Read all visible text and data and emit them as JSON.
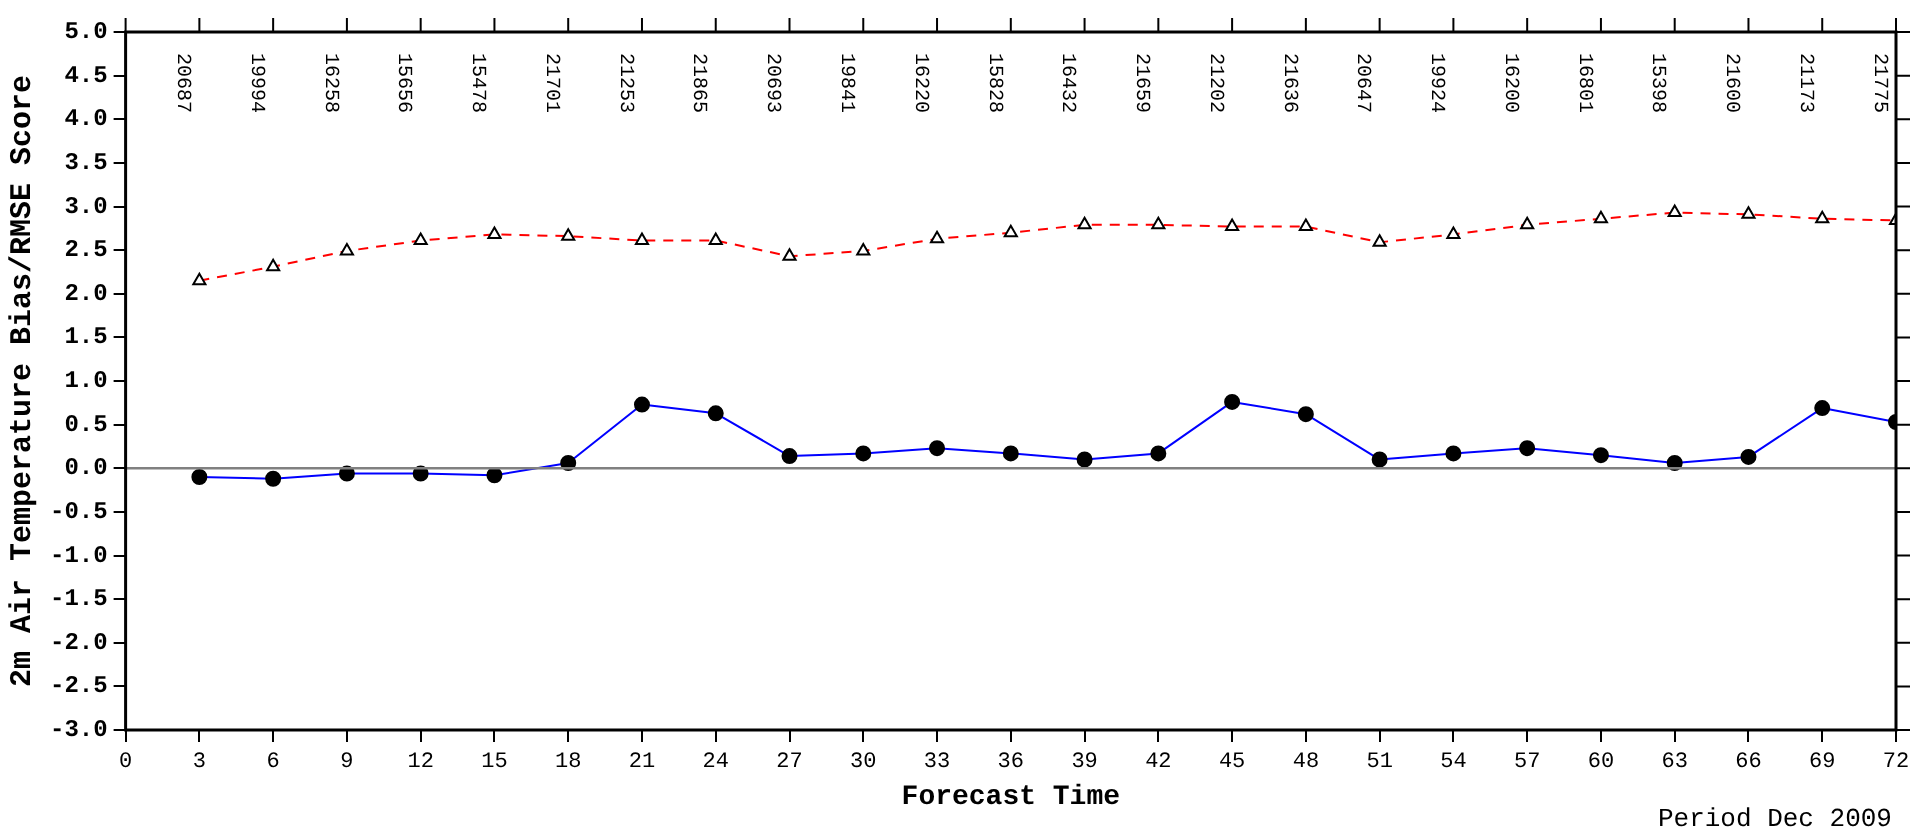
{
  "chart_data": {
    "type": "line",
    "ylabel": "2m Air Temperature Bias/RMSE Score",
    "xlabel": "Forecast Time",
    "x": [
      3,
      6,
      9,
      12,
      15,
      18,
      21,
      24,
      27,
      30,
      33,
      36,
      39,
      42,
      45,
      48,
      51,
      54,
      57,
      60,
      63,
      66,
      69,
      72
    ],
    "series": [
      {
        "color": "#ff0000",
        "marker": "triangle",
        "line_style": "dashed",
        "values": [
          2.15,
          2.31,
          2.49,
          2.61,
          2.68,
          2.66,
          2.61,
          2.61,
          2.43,
          2.49,
          2.63,
          2.7,
          2.79,
          2.79,
          2.77,
          2.77,
          2.59,
          2.68,
          2.79,
          2.86,
          2.93,
          2.91,
          2.86,
          2.84
        ]
      },
      {
        "color": "#0000ff",
        "marker": "circle",
        "line_style": "solid",
        "values": [
          -0.1,
          -0.12,
          -0.06,
          -0.06,
          -0.08,
          0.06,
          0.73,
          0.63,
          0.14,
          0.17,
          0.23,
          0.17,
          0.1,
          0.17,
          0.76,
          0.62,
          0.1,
          0.17,
          0.23,
          0.15,
          0.06,
          0.13,
          0.69,
          0.53
        ]
      }
    ],
    "xlim": [
      0,
      72
    ],
    "xticks": [
      0,
      3,
      6,
      9,
      12,
      15,
      18,
      21,
      24,
      27,
      30,
      33,
      36,
      39,
      42,
      45,
      48,
      51,
      54,
      57,
      60,
      63,
      66,
      69,
      72
    ],
    "ylim": [
      -3,
      5
    ],
    "yticks": [
      {
        "value": -3,
        "label": "-3.0"
      },
      -2.5,
      {
        "value": -2,
        "label": "-2.0"
      },
      -1.5,
      {
        "value": -1,
        "label": "-1.0"
      },
      -0.5,
      {
        "value": 0,
        "label": "0.0"
      },
      0.5,
      {
        "value": 1,
        "label": "1.0"
      },
      1.5,
      {
        "value": 2,
        "label": "2.0"
      },
      2.5,
      {
        "value": 3,
        "label": "3.0"
      },
      3.5,
      {
        "value": 4,
        "label": "4.0"
      },
      4.5,
      {
        "value": 5,
        "label": "5.0"
      }
    ],
    "grid": false,
    "legend": false,
    "ref_lines": [
      {
        "axis": "y",
        "value": 0,
        "color": "#808080"
      }
    ],
    "annotations": [
      "20687",
      "19994",
      "16258",
      "15656",
      "15478",
      "21701",
      "21253",
      "21865",
      "20693",
      "19841",
      "16220",
      "15828",
      "16432",
      "21659",
      "21202",
      "21636",
      "20647",
      "19924",
      "16200",
      "16801",
      "15398",
      "21600",
      "21173",
      "21775",
      "Period Dec 2009"
    ]
  }
}
